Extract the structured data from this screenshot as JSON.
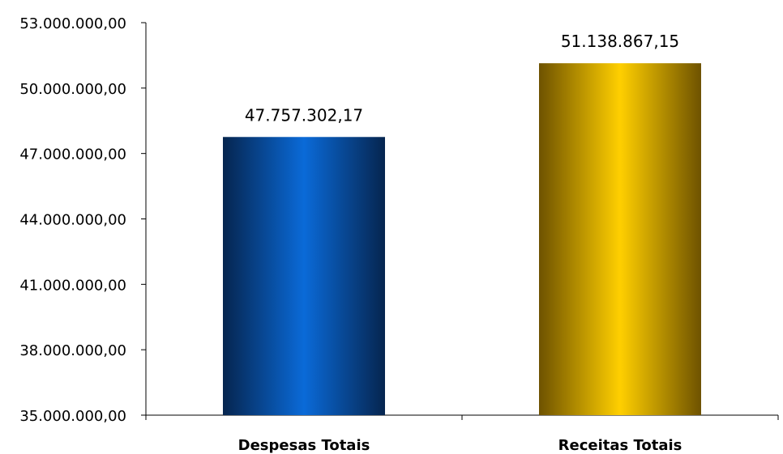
{
  "chart_data": {
    "type": "bar",
    "title": "",
    "xlabel": "",
    "ylabel": "",
    "categories": [
      "Despesas Totais",
      "Receitas Totais"
    ],
    "values": [
      47757302.17,
      51138867.15
    ],
    "value_labels": [
      "47.757.302,17",
      "51.138.867,15"
    ],
    "ylim": [
      35000000,
      53000000
    ],
    "y_ticks": [
      35000000,
      38000000,
      41000000,
      44000000,
      47000000,
      50000000,
      53000000
    ],
    "y_tick_labels": [
      "35.000.000,00",
      "38.000.000,00",
      "41.000.000,00",
      "44.000.000,00",
      "47.000.000,00",
      "50.000.000,00",
      "53.000.000,00"
    ],
    "grid": false,
    "legend": "none",
    "bar_colors": [
      {
        "edge": "#06254f",
        "center": "#0a6ad8"
      },
      {
        "edge": "#6e5200",
        "center": "#ffcf00"
      }
    ]
  }
}
